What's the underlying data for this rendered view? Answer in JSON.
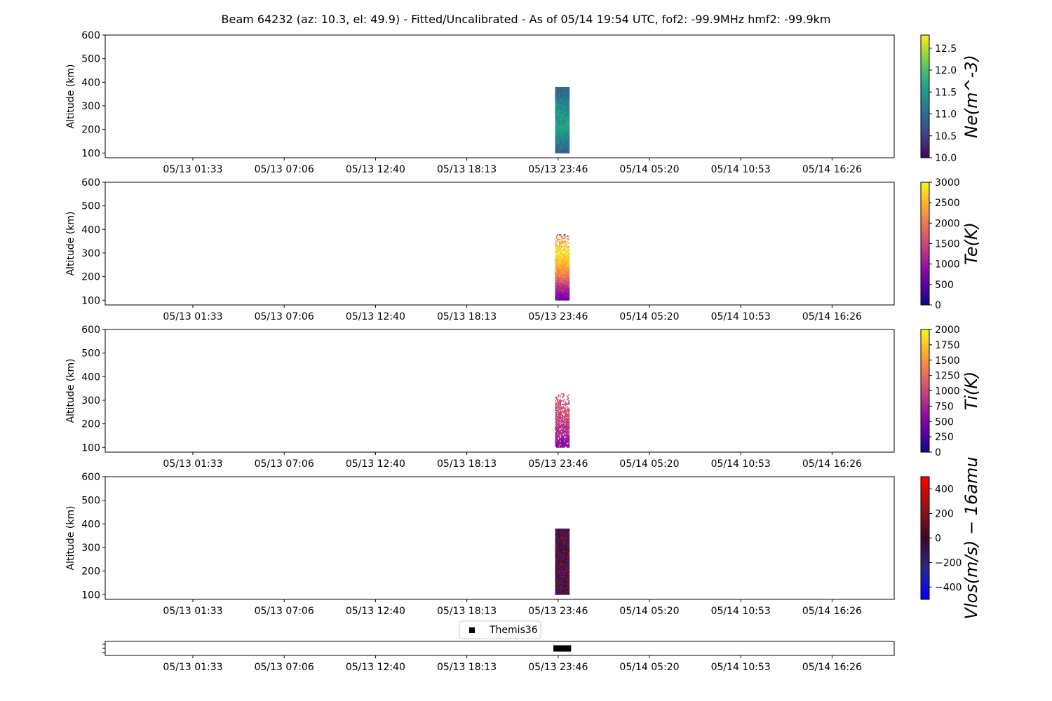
{
  "figure": {
    "title": "Beam 64232 (az: 10.3, el: 49.9) - Fitted/Uncalibrated - As of 05/14 19:54 UTC, fof2: -99.9MHz  hmf2: -99.9km"
  },
  "chart_data": [
    {
      "type": "heatmap",
      "quantity": "Ne",
      "ylabel": "Altitude (km)",
      "ylim": [
        80,
        600
      ],
      "yticks": [
        100,
        200,
        300,
        400,
        500,
        600
      ],
      "xticks": [
        "05/13 01:33",
        "05/13 07:06",
        "05/13 12:40",
        "05/13 18:13",
        "05/13 23:46",
        "05/14 05:20",
        "05/14 10:53",
        "05/14 16:26"
      ],
      "colorbar": {
        "label": "Ne(m^-3)",
        "range": [
          10.0,
          12.8
        ],
        "ticks": [
          "10.0",
          "10.5",
          "11.0",
          "11.5",
          "12.0",
          "12.5"
        ],
        "colormap": "viridis"
      },
      "data_extent": {
        "time_start": "05/13 23:36",
        "time_end": "05/14 00:28",
        "alt_min": 100,
        "alt_max": 380
      },
      "profile": [
        {
          "alt": 100,
          "value": 10.9
        },
        {
          "alt": 150,
          "value": 11.2
        },
        {
          "alt": 200,
          "value": 11.6
        },
        {
          "alt": 250,
          "value": 11.5
        },
        {
          "alt": 300,
          "value": 11.3
        },
        {
          "alt": 350,
          "value": 11.0
        },
        {
          "alt": 380,
          "value": 10.9
        }
      ]
    },
    {
      "type": "heatmap",
      "quantity": "Te",
      "ylabel": "Altitude (km)",
      "ylim": [
        80,
        600
      ],
      "yticks": [
        100,
        200,
        300,
        400,
        500,
        600
      ],
      "xticks": [
        "05/13 01:33",
        "05/13 07:06",
        "05/13 12:40",
        "05/13 18:13",
        "05/13 23:46",
        "05/14 05:20",
        "05/14 10:53",
        "05/14 16:26"
      ],
      "colorbar": {
        "label": "Te(K)",
        "range": [
          0,
          3000
        ],
        "ticks": [
          "0",
          "500",
          "1000",
          "1500",
          "2000",
          "2500",
          "3000"
        ],
        "colormap": "plasma"
      },
      "data_extent": {
        "time_start": "05/13 23:36",
        "time_end": "05/14 00:28",
        "alt_min": 100,
        "alt_max": 380
      },
      "profile": [
        {
          "alt": 100,
          "value": 600
        },
        {
          "alt": 150,
          "value": 1200
        },
        {
          "alt": 200,
          "value": 2000
        },
        {
          "alt": 250,
          "value": 2500
        },
        {
          "alt": 300,
          "value": 2800
        },
        {
          "alt": 350,
          "value": 2400
        },
        {
          "alt": 380,
          "value": 1500
        }
      ]
    },
    {
      "type": "heatmap",
      "quantity": "Ti",
      "ylabel": "Altitude (km)",
      "ylim": [
        80,
        600
      ],
      "yticks": [
        100,
        200,
        300,
        400,
        500,
        600
      ],
      "xticks": [
        "05/13 01:33",
        "05/13 07:06",
        "05/13 12:40",
        "05/13 18:13",
        "05/13 23:46",
        "05/14 05:20",
        "05/14 10:53",
        "05/14 16:26"
      ],
      "colorbar": {
        "label": "Ti(K)",
        "range": [
          0,
          2000
        ],
        "ticks": [
          "0",
          "250",
          "500",
          "750",
          "1000",
          "1250",
          "1500",
          "1750",
          "2000"
        ],
        "colormap": "plasma"
      },
      "data_extent": {
        "time_start": "05/13 23:36",
        "time_end": "05/14 00:28",
        "alt_min": 100,
        "alt_max": 330
      },
      "profile": [
        {
          "alt": 100,
          "value": 550
        },
        {
          "alt": 150,
          "value": 750
        },
        {
          "alt": 200,
          "value": 950
        },
        {
          "alt": 250,
          "value": 1050
        },
        {
          "alt": 300,
          "value": 1050
        },
        {
          "alt": 330,
          "value": 1000
        }
      ]
    },
    {
      "type": "heatmap",
      "quantity": "Vlos",
      "ylabel": "Altitude (km)",
      "ylim": [
        80,
        600
      ],
      "yticks": [
        100,
        200,
        300,
        400,
        500,
        600
      ],
      "xticks": [
        "05/13 01:33",
        "05/13 07:06",
        "05/13 12:40",
        "05/13 18:13",
        "05/13 23:46",
        "05/14 05:20",
        "05/14 10:53",
        "05/14 16:26"
      ],
      "colorbar": {
        "label": "Vlos(m/s) − 16amu",
        "range": [
          -500,
          500
        ],
        "ticks": [
          "−400",
          "−200",
          "0",
          "200",
          "400"
        ],
        "colormap": "bwr-dark"
      },
      "data_extent": {
        "time_start": "05/13 23:36",
        "time_end": "05/14 00:28",
        "alt_min": 100,
        "alt_max": 380
      },
      "profile": [
        {
          "alt": 100,
          "value": 0
        },
        {
          "alt": 200,
          "value": 0
        },
        {
          "alt": 300,
          "value": 0
        },
        {
          "alt": 380,
          "value": 0
        }
      ]
    },
    {
      "type": "scatter",
      "quantity": "mode",
      "legend": {
        "entries": [
          "Themis36"
        ],
        "position": "top-center"
      },
      "xticks": [
        "05/13 01:33",
        "05/13 07:06",
        "05/13 12:40",
        "05/13 18:13",
        "05/13 23:46",
        "05/14 05:20",
        "05/14 10:53",
        "05/14 16:26"
      ],
      "series": [
        {
          "name": "Themis36",
          "time_start": "05/13 23:36",
          "time_end": "05/14 00:28"
        }
      ]
    }
  ]
}
